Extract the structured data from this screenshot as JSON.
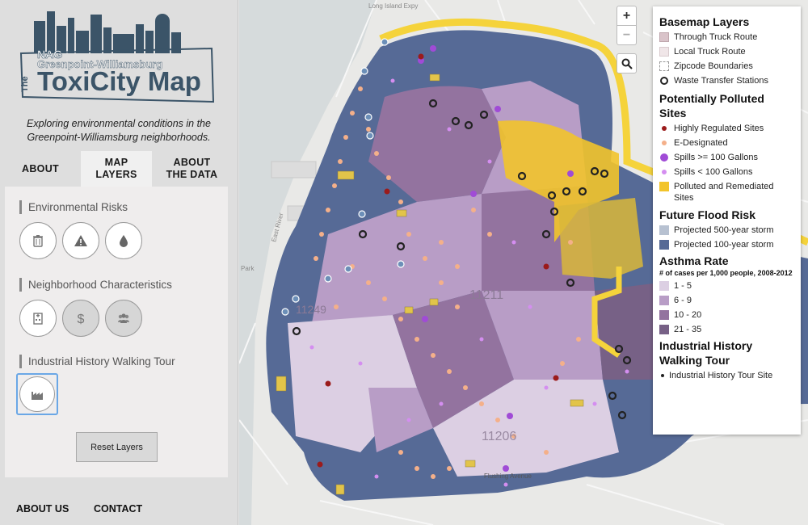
{
  "logo": {
    "line1": "NAG",
    "line2": "Greenpoint-Williamsburg",
    "line3_prefix": "The",
    "line3": "ToxiCity Map"
  },
  "tagline": "Exploring environmental conditions in the Greenpoint-Williamsburg neighborhoods.",
  "tabs": [
    {
      "label": "ABOUT"
    },
    {
      "label": "MAP LAYERS",
      "active": true
    },
    {
      "label": "ABOUT THE DATA"
    }
  ],
  "sections": {
    "env_risks": "Environmental Risks",
    "neighborhood": "Neighborhood Characteristics",
    "walking_tour": "Industrial History Walking Tour"
  },
  "reset_label": "Reset Layers",
  "footer": {
    "about_us": "ABOUT US",
    "contact": "CONTACT"
  },
  "map": {
    "zoom_in": "+",
    "zoom_out": "−",
    "labels": {
      "street_top": "Long Island Expy",
      "zip_11211": "11211",
      "zip_11206": "11206",
      "zip_11249": "11249",
      "flushing": "Flushing Avenue",
      "river": "East River",
      "park": "Park"
    }
  },
  "legend": {
    "basemap": {
      "title": "Basemap Layers",
      "items": [
        "Through Truck Route",
        "Local Truck Route",
        "Zipcode Boundaries",
        "Waste Transfer Stations"
      ]
    },
    "polluted": {
      "title": "Potentially Polluted Sites",
      "items": [
        "Highly Regulated Sites",
        "E-Designated",
        "Spills >= 100 Gallons",
        "Spills < 100 Gallons",
        "Polluted and Remediated Sites"
      ]
    },
    "flood": {
      "title": "Future Flood Risk",
      "items": [
        "Projected 500-year storm",
        "Projected 100-year storm"
      ]
    },
    "asthma": {
      "title": "Asthma Rate",
      "subtitle": "# of cases per 1,000 people, 2008-2012",
      "items": [
        "1 - 5",
        "6 - 9",
        "10 - 20",
        "21 - 35"
      ]
    },
    "tour": {
      "title": "Industrial History Walking Tour",
      "items": [
        "Industrial History Tour Site"
      ]
    }
  },
  "colors": {
    "through_truck": "#d9c3c9",
    "local_truck": "#f0e6e8",
    "highly_regulated": "#9b1b1b",
    "e_designated": "#f4b08a",
    "spills_large": "#a04bd6",
    "spills_small": "#d48ef0",
    "remediated": "#f2c42b",
    "flood_500": "#b7c1d1",
    "flood_100": "#566a96",
    "asthma_1": "#dccfe3",
    "asthma_2": "#b89dc6",
    "asthma_3": "#93739f",
    "asthma_4": "#776186",
    "accent_blue": "#6aa7e6"
  }
}
